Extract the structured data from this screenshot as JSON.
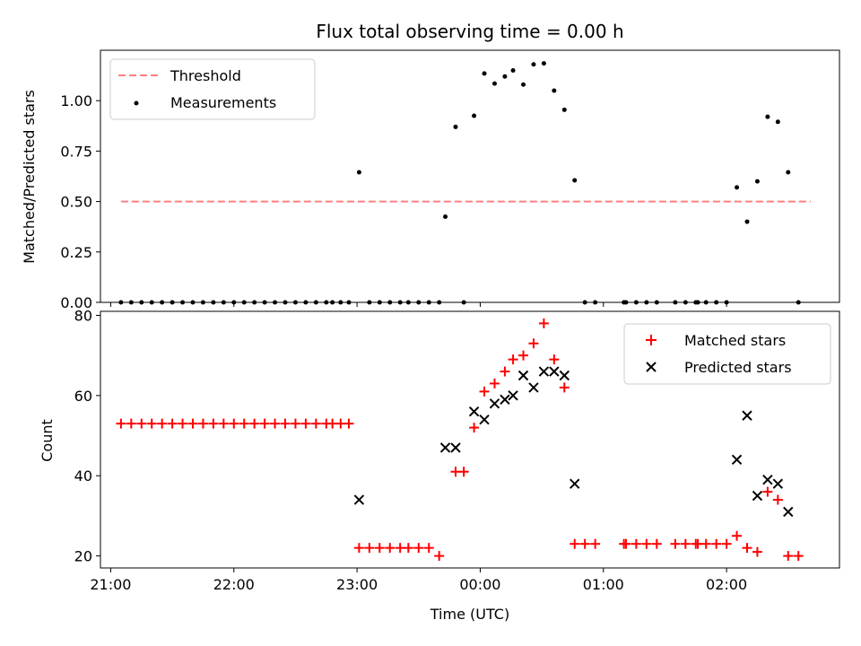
{
  "colors": {
    "threshold": "#ff7f7f",
    "measurement": "#000000",
    "matched": "#ff0000",
    "predicted": "#000000"
  },
  "chart_data": [
    {
      "type": "scatter",
      "title": "Flux total observing time = 0.00 h",
      "xlabel": "",
      "ylabel": "Matched/Predicted stars",
      "ylim": [
        0,
        1.25
      ],
      "yticks": [
        "0.00",
        "0.25",
        "0.50",
        "0.75",
        "1.00"
      ],
      "legend": "upper-left",
      "legend_entries": [
        "Threshold",
        "Measurements"
      ],
      "threshold": {
        "value": 0.5,
        "x_start": "21:05",
        "x_end": "02:41"
      },
      "series": [
        {
          "name": "Measurements",
          "points": [
            [
              "21:05",
              0
            ],
            [
              "21:10",
              0
            ],
            [
              "21:15",
              0
            ],
            [
              "21:20",
              0
            ],
            [
              "21:25",
              0
            ],
            [
              "21:30",
              0
            ],
            [
              "21:35",
              0
            ],
            [
              "21:40",
              0
            ],
            [
              "21:45",
              0
            ],
            [
              "21:50",
              0
            ],
            [
              "21:55",
              0
            ],
            [
              "22:00",
              0
            ],
            [
              "22:05",
              0
            ],
            [
              "22:10",
              0
            ],
            [
              "22:15",
              0
            ],
            [
              "22:20",
              0
            ],
            [
              "22:25",
              0
            ],
            [
              "22:30",
              0
            ],
            [
              "22:35",
              0
            ],
            [
              "22:40",
              0
            ],
            [
              "22:45",
              0
            ],
            [
              "22:48",
              0
            ],
            [
              "22:52",
              0
            ],
            [
              "22:56",
              0
            ],
            [
              "23:01",
              0.645
            ],
            [
              "23:06",
              0
            ],
            [
              "23:11",
              0
            ],
            [
              "23:16",
              0
            ],
            [
              "23:21",
              0
            ],
            [
              "23:25",
              0
            ],
            [
              "23:30",
              0
            ],
            [
              "23:35",
              0
            ],
            [
              "23:40",
              0
            ],
            [
              "23:43",
              0.425
            ],
            [
              "23:48",
              0.87
            ],
            [
              "23:52",
              0
            ],
            [
              "23:57",
              0.925
            ],
            [
              "00:02",
              1.135
            ],
            [
              "00:07",
              1.085
            ],
            [
              "00:12",
              1.12
            ],
            [
              "00:16",
              1.15
            ],
            [
              "00:21",
              1.08
            ],
            [
              "00:26",
              1.18
            ],
            [
              "00:31",
              1.185
            ],
            [
              "00:36",
              1.05
            ],
            [
              "00:41",
              0.955
            ],
            [
              "00:46",
              0.605
            ],
            [
              "00:51",
              0
            ],
            [
              "00:56",
              0
            ],
            [
              "01:10",
              0
            ],
            [
              "01:11",
              0
            ],
            [
              "01:16",
              0
            ],
            [
              "01:21",
              0
            ],
            [
              "01:26",
              0
            ],
            [
              "01:35",
              0
            ],
            [
              "01:40",
              0
            ],
            [
              "01:45",
              0
            ],
            [
              "01:46",
              0
            ],
            [
              "01:50",
              0
            ],
            [
              "01:55",
              0
            ],
            [
              "02:00",
              0
            ],
            [
              "02:05",
              0.57
            ],
            [
              "02:10",
              0.4
            ],
            [
              "02:15",
              0.6
            ],
            [
              "02:20",
              0.92
            ],
            [
              "02:25",
              0.895
            ],
            [
              "02:30",
              0.645
            ],
            [
              "02:35",
              0
            ]
          ]
        }
      ]
    },
    {
      "type": "scatter",
      "title": "",
      "xlabel": "Time (UTC)",
      "ylabel": "Count",
      "ylim": [
        17,
        81
      ],
      "yticks": [
        "20",
        "40",
        "60",
        "80"
      ],
      "xlim": [
        "20:55",
        "02:55"
      ],
      "xticks": [
        "21:00",
        "22:00",
        "23:00",
        "00:00",
        "01:00",
        "02:00"
      ],
      "legend": "upper-right",
      "legend_entries": [
        "Matched stars",
        "Predicted stars"
      ],
      "series": [
        {
          "name": "Matched stars",
          "points": [
            [
              "21:05",
              53
            ],
            [
              "21:10",
              53
            ],
            [
              "21:15",
              53
            ],
            [
              "21:20",
              53
            ],
            [
              "21:25",
              53
            ],
            [
              "21:30",
              53
            ],
            [
              "21:35",
              53
            ],
            [
              "21:40",
              53
            ],
            [
              "21:45",
              53
            ],
            [
              "21:50",
              53
            ],
            [
              "21:55",
              53
            ],
            [
              "22:00",
              53
            ],
            [
              "22:05",
              53
            ],
            [
              "22:10",
              53
            ],
            [
              "22:15",
              53
            ],
            [
              "22:20",
              53
            ],
            [
              "22:25",
              53
            ],
            [
              "22:30",
              53
            ],
            [
              "22:35",
              53
            ],
            [
              "22:40",
              53
            ],
            [
              "22:45",
              53
            ],
            [
              "22:48",
              53
            ],
            [
              "22:52",
              53
            ],
            [
              "22:56",
              53
            ],
            [
              "23:01",
              22
            ],
            [
              "23:06",
              22
            ],
            [
              "23:11",
              22
            ],
            [
              "23:16",
              22
            ],
            [
              "23:21",
              22
            ],
            [
              "23:25",
              22
            ],
            [
              "23:30",
              22
            ],
            [
              "23:35",
              22
            ],
            [
              "23:40",
              20
            ],
            [
              "23:48",
              41
            ],
            [
              "23:52",
              41
            ],
            [
              "23:57",
              52
            ],
            [
              "00:02",
              61
            ],
            [
              "00:07",
              63
            ],
            [
              "00:12",
              66
            ],
            [
              "00:16",
              69
            ],
            [
              "00:21",
              70
            ],
            [
              "00:26",
              73
            ],
            [
              "00:31",
              78
            ],
            [
              "00:36",
              69
            ],
            [
              "00:41",
              62
            ],
            [
              "00:46",
              23
            ],
            [
              "00:51",
              23
            ],
            [
              "00:56",
              23
            ],
            [
              "01:10",
              23
            ],
            [
              "01:11",
              23
            ],
            [
              "01:16",
              23
            ],
            [
              "01:21",
              23
            ],
            [
              "01:26",
              23
            ],
            [
              "01:35",
              23
            ],
            [
              "01:40",
              23
            ],
            [
              "01:45",
              23
            ],
            [
              "01:46",
              23
            ],
            [
              "01:50",
              23
            ],
            [
              "01:55",
              23
            ],
            [
              "02:00",
              23
            ],
            [
              "02:05",
              25
            ],
            [
              "02:10",
              22
            ],
            [
              "02:15",
              21
            ],
            [
              "02:20",
              36
            ],
            [
              "02:25",
              34
            ],
            [
              "02:30",
              20
            ],
            [
              "02:35",
              20
            ]
          ]
        },
        {
          "name": "Predicted stars",
          "points": [
            [
              "23:01",
              34
            ],
            [
              "23:43",
              47
            ],
            [
              "23:48",
              47
            ],
            [
              "23:57",
              56
            ],
            [
              "00:02",
              54
            ],
            [
              "00:07",
              58
            ],
            [
              "00:12",
              59
            ],
            [
              "00:16",
              60
            ],
            [
              "00:21",
              65
            ],
            [
              "00:26",
              62
            ],
            [
              "00:31",
              66
            ],
            [
              "00:36",
              66
            ],
            [
              "00:41",
              65
            ],
            [
              "00:46",
              38
            ],
            [
              "02:05",
              44
            ],
            [
              "02:10",
              55
            ],
            [
              "02:15",
              35
            ],
            [
              "02:20",
              39
            ],
            [
              "02:25",
              38
            ],
            [
              "02:30",
              31
            ]
          ]
        }
      ]
    }
  ]
}
